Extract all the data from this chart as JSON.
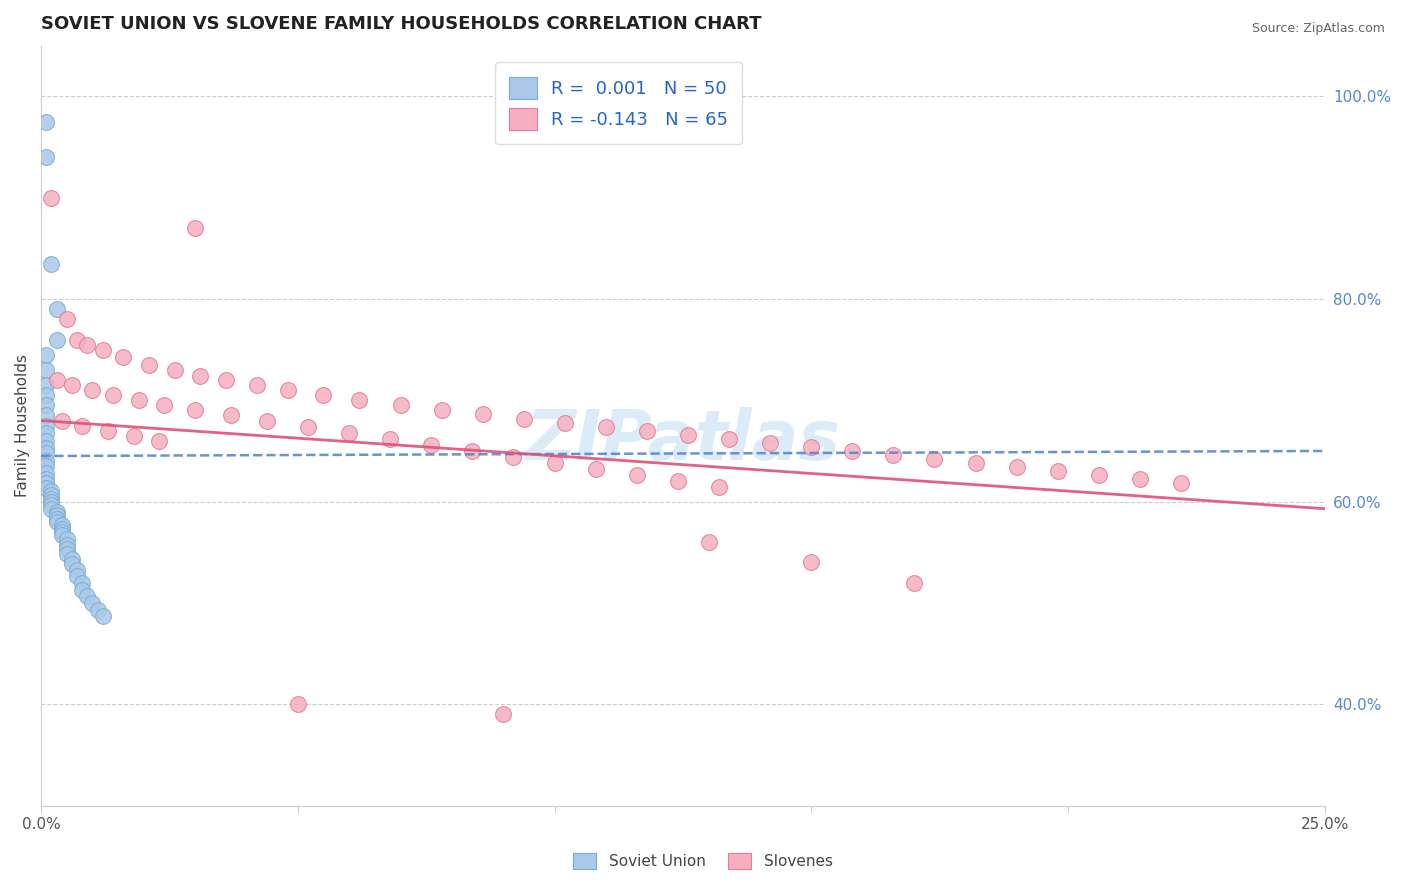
{
  "title": "SOVIET UNION VS SLOVENE FAMILY HOUSEHOLDS CORRELATION CHART",
  "source_text": "Source: ZipAtlas.com",
  "ylabel": "Family Households",
  "watermark": "ZIPatlas",
  "xlim": [
    0.0,
    0.25
  ],
  "ylim": [
    0.3,
    1.05
  ],
  "xticks": [
    0.0,
    0.05,
    0.1,
    0.15,
    0.2,
    0.25
  ],
  "xtick_labels": [
    "0.0%",
    "",
    "",
    "",
    "",
    "25.0%"
  ],
  "yticks_right": [
    0.4,
    0.6,
    0.8,
    1.0
  ],
  "ytick_labels_right": [
    "40.0%",
    "60.0%",
    "80.0%",
    "100.0%"
  ],
  "soviet_color": "#aac8e8",
  "slovene_color": "#f5afc0",
  "soviet_edge": "#7aadd4",
  "slovene_edge": "#e87a9a",
  "trendline_soviet_color": "#5588cc",
  "trendline_slovene_color": "#e0507a",
  "R_soviet": 0.001,
  "N_soviet": 50,
  "R_slovene": -0.143,
  "N_slovene": 65,
  "legend_label_soviet": "Soviet Union",
  "legend_label_slovene": "Slovenes",
  "soviet_x": [
    0.001,
    0.001,
    0.002,
    0.003,
    0.003,
    0.001,
    0.001,
    0.001,
    0.001,
    0.001,
    0.001,
    0.001,
    0.001,
    0.001,
    0.001,
    0.001,
    0.001,
    0.001,
    0.001,
    0.001,
    0.001,
    0.001,
    0.002,
    0.002,
    0.002,
    0.002,
    0.002,
    0.002,
    0.003,
    0.003,
    0.003,
    0.003,
    0.004,
    0.004,
    0.004,
    0.004,
    0.005,
    0.005,
    0.005,
    0.005,
    0.006,
    0.006,
    0.007,
    0.007,
    0.008,
    0.008,
    0.009,
    0.01,
    0.011,
    0.012
  ],
  "soviet_y": [
    0.975,
    0.94,
    0.835,
    0.79,
    0.76,
    0.745,
    0.73,
    0.715,
    0.705,
    0.695,
    0.685,
    0.675,
    0.668,
    0.66,
    0.653,
    0.648,
    0.64,
    0.635,
    0.628,
    0.622,
    0.618,
    0.613,
    0.61,
    0.607,
    0.603,
    0.6,
    0.597,
    0.593,
    0.59,
    0.587,
    0.583,
    0.58,
    0.577,
    0.573,
    0.57,
    0.567,
    0.563,
    0.557,
    0.553,
    0.548,
    0.543,
    0.538,
    0.533,
    0.527,
    0.52,
    0.513,
    0.507,
    0.5,
    0.493,
    0.487
  ],
  "slovene_x": [
    0.002,
    0.03,
    0.005,
    0.007,
    0.009,
    0.012,
    0.016,
    0.021,
    0.026,
    0.031,
    0.036,
    0.042,
    0.048,
    0.055,
    0.062,
    0.07,
    0.078,
    0.086,
    0.094,
    0.102,
    0.11,
    0.118,
    0.126,
    0.134,
    0.142,
    0.15,
    0.158,
    0.166,
    0.174,
    0.182,
    0.19,
    0.198,
    0.206,
    0.214,
    0.222,
    0.003,
    0.006,
    0.01,
    0.014,
    0.019,
    0.024,
    0.03,
    0.037,
    0.044,
    0.052,
    0.06,
    0.068,
    0.076,
    0.084,
    0.092,
    0.1,
    0.108,
    0.116,
    0.124,
    0.132,
    0.004,
    0.008,
    0.013,
    0.018,
    0.023,
    0.13,
    0.15,
    0.17,
    0.05,
    0.09
  ],
  "slovene_y": [
    0.9,
    0.87,
    0.78,
    0.76,
    0.755,
    0.75,
    0.743,
    0.735,
    0.73,
    0.724,
    0.72,
    0.715,
    0.71,
    0.705,
    0.7,
    0.695,
    0.69,
    0.686,
    0.682,
    0.678,
    0.674,
    0.67,
    0.666,
    0.662,
    0.658,
    0.654,
    0.65,
    0.646,
    0.642,
    0.638,
    0.634,
    0.63,
    0.626,
    0.622,
    0.618,
    0.72,
    0.715,
    0.71,
    0.705,
    0.7,
    0.695,
    0.69,
    0.685,
    0.68,
    0.674,
    0.668,
    0.662,
    0.656,
    0.65,
    0.644,
    0.638,
    0.632,
    0.626,
    0.62,
    0.614,
    0.68,
    0.675,
    0.67,
    0.665,
    0.66,
    0.56,
    0.54,
    0.52,
    0.4,
    0.39
  ]
}
